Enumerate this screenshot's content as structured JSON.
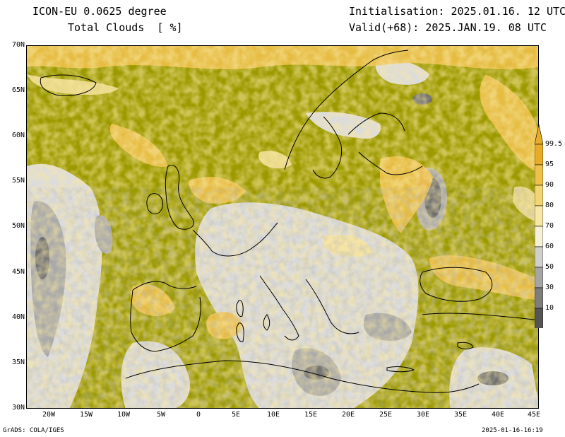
{
  "header": {
    "model_title": "ICON-EU 0.0625 degree",
    "variable_title": "Total Clouds  [ %]",
    "initialisation": "Initialisation: 2025.01.16. 12 UTC",
    "valid": "Valid(+68): 2025.JAN.19. 08 UTC"
  },
  "map": {
    "region": "Europe",
    "variable": "total cloud cover",
    "units": "%",
    "lon_range": [
      -23.5,
      45
    ],
    "lat_range": [
      30,
      70
    ],
    "latitude_labels": [
      "70N",
      "65N",
      "60N",
      "55N",
      "50N",
      "45N",
      "40N",
      "35N",
      "30N"
    ],
    "longitude_labels": [
      "20W",
      "15W",
      "10W",
      "5W",
      "0",
      "5E",
      "10E",
      "15E",
      "20E",
      "25E",
      "30E",
      "35E",
      "40E",
      "45E"
    ],
    "colors": {
      "overcast": "#9c9a00",
      "high": "#e9b23c",
      "mid_high": "#f2cf63",
      "mid": "#f6e3a0",
      "light": "#dcdcdc",
      "grey": "#a8a8a8",
      "dark_grey": "#6e6e6e",
      "clear": "#ffffff",
      "coastline": "#000000"
    }
  },
  "colorbar": {
    "levels": [
      "99.5",
      "95",
      "90",
      "80",
      "70",
      "60",
      "50",
      "30",
      "10"
    ],
    "colors": [
      "#e8ac28",
      "#eec04a",
      "#f3d472",
      "#f7e6a6",
      "#f5f0d8",
      "#cfcfcf",
      "#a5a5a5",
      "#7d7d7d",
      "#555555"
    ]
  },
  "footer": {
    "left": "GrADS: COLA/IGES",
    "right": "2025-01-16-16:19"
  }
}
